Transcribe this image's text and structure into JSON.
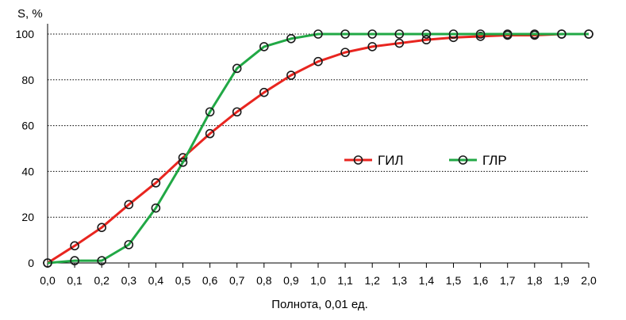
{
  "chart_data": {
    "type": "line",
    "title": "",
    "xlabel": "Полнота, 0,01 ед.",
    "ylabel": "S, %",
    "xlim": [
      0,
      2.0
    ],
    "ylim": [
      0,
      100
    ],
    "x_ticks": [
      "0,0",
      "0,1",
      "0,2",
      "0,3",
      "0,4",
      "0,5",
      "0,6",
      "0,7",
      "0,8",
      "0,9",
      "1,0",
      "1,1",
      "1,2",
      "1,3",
      "1,4",
      "1,5",
      "1,6",
      "1,7",
      "1,8",
      "1,9",
      "2,0"
    ],
    "y_ticks": [
      "0",
      "20",
      "40",
      "60",
      "80",
      "100"
    ],
    "grid": "horizontal dotted",
    "legend": "center-right",
    "series": [
      {
        "name": "ГИЛ",
        "color": "#e8251f",
        "marker": "open-circle",
        "x": [
          0.0,
          0.1,
          0.2,
          0.3,
          0.4,
          0.5,
          0.6,
          0.7,
          0.8,
          0.9,
          1.0,
          1.1,
          1.2,
          1.3,
          1.4,
          1.5,
          1.6,
          1.7,
          1.8,
          1.9,
          2.0
        ],
        "y": [
          0,
          7.5,
          15.5,
          25.5,
          35,
          46,
          56.5,
          66,
          74.5,
          82,
          88,
          92,
          94.5,
          96,
          97.5,
          98.5,
          99,
          99.5,
          99.5,
          100,
          100
        ]
      },
      {
        "name": "ГЛР",
        "color": "#21a845",
        "marker": "open-circle",
        "x": [
          0.0,
          0.1,
          0.2,
          0.3,
          0.4,
          0.5,
          0.6,
          0.7,
          0.8,
          0.9,
          1.0,
          1.1,
          1.2,
          1.3,
          1.4,
          1.5,
          1.6,
          1.7,
          1.8,
          1.9,
          2.0
        ],
        "y": [
          0,
          1,
          1,
          8,
          24,
          44,
          66,
          85,
          94.5,
          98,
          100,
          100,
          100,
          100,
          100,
          100,
          100,
          100,
          100,
          100,
          100
        ]
      }
    ]
  }
}
